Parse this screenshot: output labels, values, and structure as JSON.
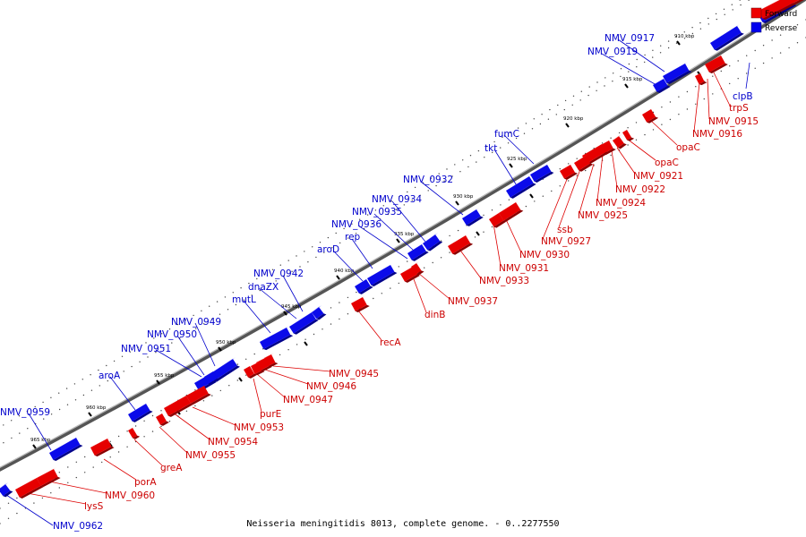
{
  "caption": "Neisseria meningitidis 8013, complete genome. - 0..2277550",
  "legend": {
    "forward": {
      "label": "Forward",
      "color": "#ee0000"
    },
    "reverse": {
      "label": "Reverse",
      "color": "#0000ee"
    }
  },
  "ticks": [
    "910 kbp",
    "915 kbp",
    "920 kbp",
    "925 kbp",
    "930 kbp",
    "935 kbp",
    "940 kbp",
    "945 kbp",
    "950 kbp",
    "955 kbp",
    "960 kbp",
    "965 kbp"
  ],
  "reverse_labels": [
    "NMV_0917",
    "NMV_0919",
    "clpB",
    "fumC",
    "tkt",
    "NMV_0932",
    "NMV_0934",
    "NMV_0935",
    "NMV_0936",
    "rep",
    "aroD",
    "NMV_0942",
    "dnaZX",
    "mutL",
    "NMV_0949",
    "NMV_0950",
    "NMV_0951",
    "aroA",
    "NMV_0959",
    "NMV_0962"
  ],
  "forward_labels": [
    "trpS",
    "NMV_0915",
    "NMV_0916",
    "opaC",
    "opaC",
    "NMV_0921",
    "NMV_0922",
    "NMV_0924",
    "NMV_0925",
    "ssb",
    "NMV_0927",
    "NMV_0930",
    "NMV_0931",
    "NMV_0933",
    "NMV_0937",
    "dinB",
    "recA",
    "NMV_0945",
    "NMV_0946",
    "NMV_0947",
    "purE",
    "NMV_0953",
    "NMV_0954",
    "NMV_0955",
    "greA",
    "porA",
    "NMV_0960",
    "lysS"
  ]
}
